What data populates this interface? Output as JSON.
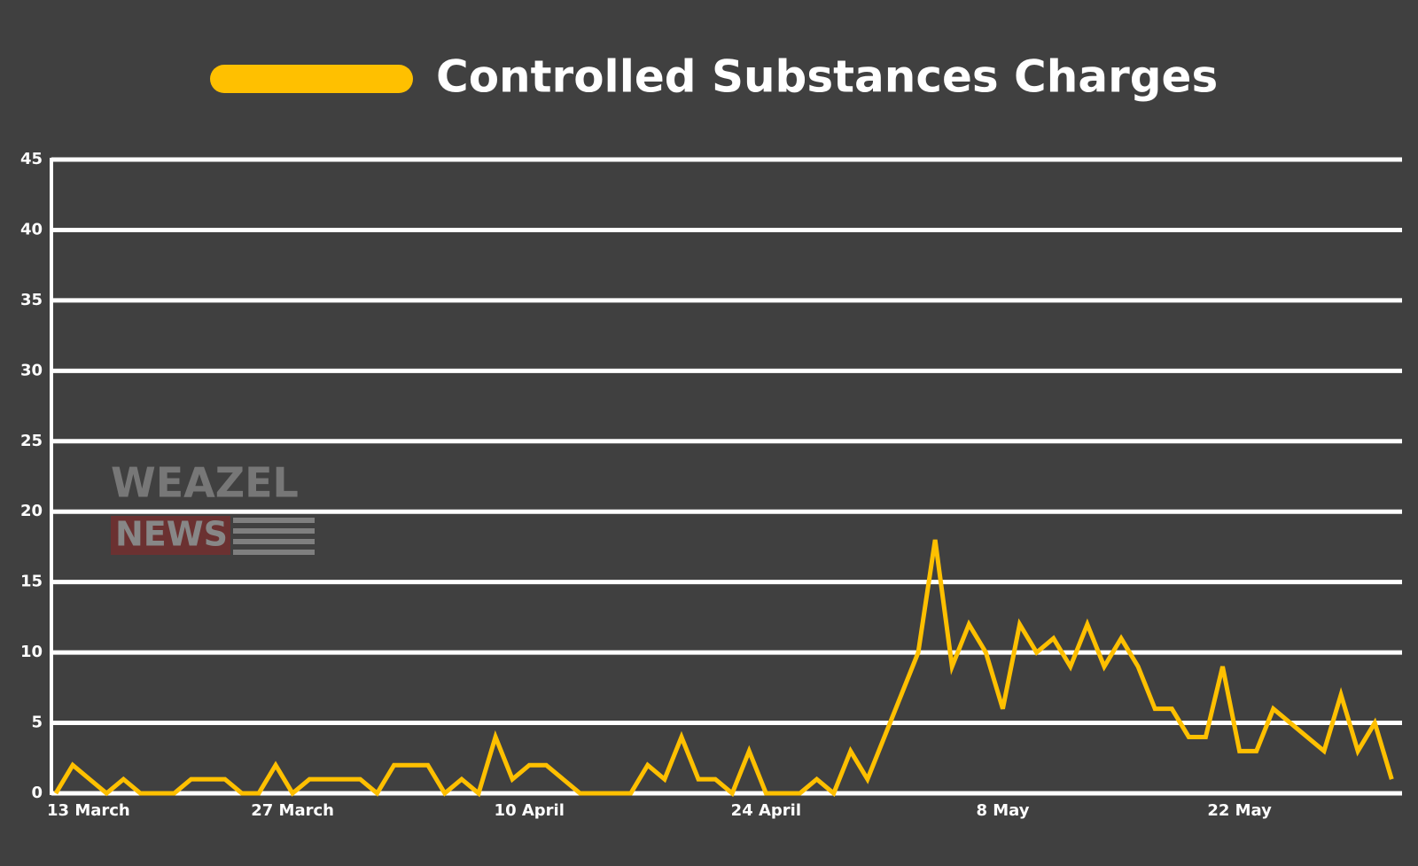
{
  "chart_data": {
    "type": "line",
    "categories": [
      "13 March",
      null,
      null,
      null,
      null,
      null,
      null,
      null,
      null,
      null,
      null,
      null,
      null,
      null,
      "27 March",
      null,
      null,
      null,
      null,
      null,
      null,
      null,
      null,
      null,
      null,
      null,
      null,
      null,
      "10 April",
      null,
      null,
      null,
      null,
      null,
      null,
      null,
      null,
      null,
      null,
      null,
      null,
      null,
      "24 April",
      null,
      null,
      null,
      null,
      null,
      null,
      null,
      null,
      null,
      null,
      null,
      null,
      null,
      "8 May",
      null,
      null,
      null,
      null,
      null,
      null,
      null,
      null,
      null,
      null,
      null,
      null,
      null,
      "22 May",
      null,
      null,
      null,
      null,
      null,
      null,
      null,
      null,
      null
    ],
    "series": [
      {
        "name": "Controlled Substances Charges",
        "color": "#ffc000",
        "values": [
          0,
          2,
          1,
          0,
          1,
          0,
          0,
          0,
          1,
          1,
          1,
          0,
          0,
          2,
          0,
          1,
          1,
          1,
          1,
          0,
          2,
          2,
          2,
          0,
          1,
          0,
          4,
          1,
          2,
          2,
          1,
          0,
          0,
          0,
          0,
          2,
          1,
          4,
          1,
          1,
          0,
          3,
          0,
          0,
          0,
          1,
          0,
          3,
          1,
          4,
          7,
          10,
          18,
          9,
          12,
          10,
          6,
          12,
          10,
          11,
          9,
          12,
          9,
          11,
          9,
          6,
          6,
          4,
          4,
          9,
          3,
          3,
          6,
          5,
          4,
          3,
          7,
          3,
          5,
          1
        ]
      }
    ],
    "ylim": [
      0,
      45
    ],
    "yticks": [
      0,
      5,
      10,
      15,
      20,
      25,
      30,
      35,
      40,
      45
    ],
    "grid": true,
    "legend": "top",
    "watermark": [
      "WEAZEL",
      "NEWS"
    ]
  }
}
